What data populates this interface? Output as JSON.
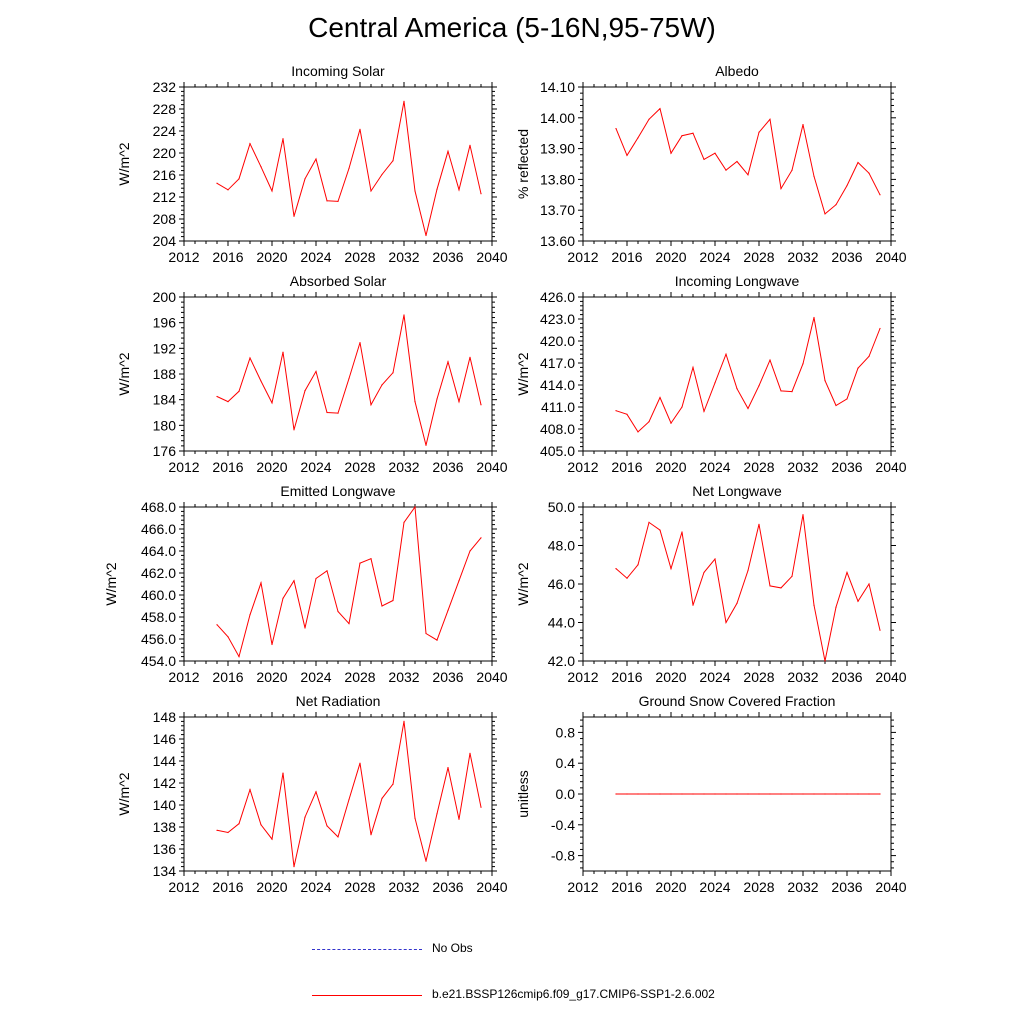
{
  "figure": {
    "title": "Central America (5-16N,95-75W)"
  },
  "legend": {
    "obs_label": "No Obs",
    "model_label": "b.e21.BSSP126cmip6.f09_g17.CMIP6-SSP1-2.6.002",
    "model_color": "#ff0000",
    "obs_color": "#0000ff"
  },
  "chart_data": [
    {
      "type": "line",
      "title": "Incoming Solar",
      "ylabel": "W/m^2",
      "xlim": [
        2012,
        2040
      ],
      "ylim": [
        204,
        232
      ],
      "xticks": [
        2012,
        2016,
        2020,
        2024,
        2028,
        2032,
        2036,
        2040
      ],
      "yticks": [
        "204",
        "208",
        "212",
        "216",
        "220",
        "224",
        "228",
        "232"
      ],
      "x": [
        2015,
        2016,
        2017,
        2018,
        2019,
        2020,
        2021,
        2022,
        2023,
        2024,
        2025,
        2026,
        2027,
        2028,
        2029,
        2030,
        2031,
        2032,
        2033,
        2034,
        2035,
        2036,
        2037,
        2038,
        2039
      ],
      "values": [
        214.5,
        213.3,
        215.3,
        221.7,
        217.5,
        213.1,
        222.6,
        208.5,
        215.3,
        218.9,
        211.3,
        211.2,
        217.2,
        224.3,
        213.1,
        216.1,
        218.6,
        229.4,
        213.1,
        205.0,
        213.4,
        220.3,
        213.3,
        221.4,
        212.6
      ],
      "series_color": "#ff0000"
    },
    {
      "type": "line",
      "title": "Albedo",
      "ylabel": "% reflected",
      "xlim": [
        2012,
        2040
      ],
      "ylim": [
        13.6,
        14.1
      ],
      "xticks": [
        2012,
        2016,
        2020,
        2024,
        2028,
        2032,
        2036,
        2040
      ],
      "yticks": [
        "13.60",
        "13.70",
        "13.80",
        "13.90",
        "14.00",
        "14.10"
      ],
      "x": [
        2015,
        2016,
        2017,
        2018,
        2019,
        2020,
        2021,
        2022,
        2023,
        2024,
        2025,
        2026,
        2027,
        2028,
        2029,
        2030,
        2031,
        2032,
        2033,
        2034,
        2035,
        2036,
        2037,
        2038,
        2039
      ],
      "values": [
        13.965,
        13.878,
        13.935,
        13.995,
        14.03,
        13.885,
        13.942,
        13.95,
        13.865,
        13.885,
        13.83,
        13.858,
        13.815,
        13.953,
        13.995,
        13.77,
        13.83,
        13.978,
        13.81,
        13.688,
        13.718,
        13.78,
        13.855,
        13.82,
        13.75
      ],
      "series_color": "#ff0000"
    },
    {
      "type": "line",
      "title": "Absorbed Solar",
      "ylabel": "W/m^2",
      "xlim": [
        2012,
        2040
      ],
      "ylim": [
        176,
        200
      ],
      "xticks": [
        2012,
        2016,
        2020,
        2024,
        2028,
        2032,
        2036,
        2040
      ],
      "yticks": [
        "176",
        "180",
        "184",
        "188",
        "192",
        "196",
        "200"
      ],
      "x": [
        2015,
        2016,
        2017,
        2018,
        2019,
        2020,
        2021,
        2022,
        2023,
        2024,
        2025,
        2026,
        2027,
        2028,
        2029,
        2030,
        2031,
        2032,
        2033,
        2034,
        2035,
        2036,
        2037,
        2038,
        2039
      ],
      "values": [
        184.5,
        183.7,
        185.3,
        190.5,
        186.9,
        183.5,
        191.4,
        179.3,
        185.4,
        188.4,
        182.0,
        181.9,
        187.3,
        192.9,
        183.2,
        186.3,
        188.2,
        197.2,
        183.7,
        176.9,
        184.1,
        189.9,
        183.7,
        190.6,
        183.2
      ],
      "series_color": "#ff0000"
    },
    {
      "type": "line",
      "title": "Incoming Longwave",
      "ylabel": "W/m^2",
      "xlim": [
        2012,
        2040
      ],
      "ylim": [
        405,
        426
      ],
      "xticks": [
        2012,
        2016,
        2020,
        2024,
        2028,
        2032,
        2036,
        2040
      ],
      "yticks": [
        "405.0",
        "408.0",
        "411.0",
        "414.0",
        "417.0",
        "420.0",
        "423.0",
        "426.0"
      ],
      "x": [
        2015,
        2016,
        2017,
        2018,
        2019,
        2020,
        2021,
        2022,
        2023,
        2024,
        2025,
        2026,
        2027,
        2028,
        2029,
        2030,
        2031,
        2032,
        2033,
        2034,
        2035,
        2036,
        2037,
        2038,
        2039
      ],
      "values": [
        410.5,
        410.0,
        407.6,
        409.0,
        412.3,
        408.8,
        411.0,
        416.4,
        410.4,
        414.3,
        418.2,
        413.5,
        410.8,
        413.9,
        417.4,
        413.2,
        413.1,
        416.9,
        423.2,
        414.6,
        411.2,
        412.1,
        416.3,
        417.9,
        421.7
      ],
      "series_color": "#ff0000"
    },
    {
      "type": "line",
      "title": "Emitted Longwave",
      "ylabel": "W/m^2",
      "xlim": [
        2012,
        2040
      ],
      "ylim": [
        454,
        468
      ],
      "xticks": [
        2012,
        2016,
        2020,
        2024,
        2028,
        2032,
        2036,
        2040
      ],
      "yticks": [
        "454.0",
        "456.0",
        "458.0",
        "460.0",
        "462.0",
        "464.0",
        "466.0",
        "468.0"
      ],
      "x": [
        2015,
        2016,
        2017,
        2018,
        2019,
        2020,
        2021,
        2022,
        2023,
        2024,
        2025,
        2026,
        2027,
        2028,
        2029,
        2030,
        2031,
        2032,
        2033,
        2034,
        2035,
        2036,
        2037,
        2038,
        2039
      ],
      "values": [
        457.3,
        456.2,
        454.4,
        458.2,
        461.1,
        455.5,
        459.7,
        461.3,
        457.0,
        461.5,
        462.2,
        458.5,
        457.4,
        462.9,
        463.3,
        459.0,
        459.5,
        466.6,
        468.0,
        456.5,
        455.9,
        458.6,
        461.3,
        464.0,
        465.2
      ],
      "series_color": "#ff0000"
    },
    {
      "type": "line",
      "title": "Net Longwave",
      "ylabel": "W/m^2",
      "xlim": [
        2012,
        2040
      ],
      "ylim": [
        42,
        50
      ],
      "xticks": [
        2012,
        2016,
        2020,
        2024,
        2028,
        2032,
        2036,
        2040
      ],
      "yticks": [
        "42.0",
        "44.0",
        "46.0",
        "48.0",
        "50.0"
      ],
      "x": [
        2015,
        2016,
        2017,
        2018,
        2019,
        2020,
        2021,
        2022,
        2023,
        2024,
        2025,
        2026,
        2027,
        2028,
        2029,
        2030,
        2031,
        2032,
        2033,
        2034,
        2035,
        2036,
        2037,
        2038,
        2039
      ],
      "values": [
        46.8,
        46.3,
        47.0,
        49.2,
        48.8,
        46.8,
        48.7,
        44.9,
        46.6,
        47.3,
        44.0,
        45.0,
        46.7,
        49.1,
        45.9,
        45.8,
        46.4,
        49.6,
        44.9,
        42.0,
        44.8,
        46.6,
        45.1,
        46.0,
        43.6
      ],
      "series_color": "#ff0000"
    },
    {
      "type": "line",
      "title": "Net Radiation",
      "ylabel": "W/m^2",
      "xlim": [
        2012,
        2040
      ],
      "ylim": [
        134,
        148
      ],
      "xticks": [
        2012,
        2016,
        2020,
        2024,
        2028,
        2032,
        2036,
        2040
      ],
      "yticks": [
        "134",
        "136",
        "138",
        "140",
        "142",
        "144",
        "146",
        "148"
      ],
      "x": [
        2015,
        2016,
        2017,
        2018,
        2019,
        2020,
        2021,
        2022,
        2023,
        2024,
        2025,
        2026,
        2027,
        2028,
        2029,
        2030,
        2031,
        2032,
        2033,
        2034,
        2035,
        2036,
        2037,
        2038,
        2039
      ],
      "values": [
        137.7,
        137.5,
        138.3,
        141.4,
        138.2,
        136.9,
        142.9,
        134.4,
        138.9,
        141.2,
        138.1,
        137.1,
        140.5,
        143.8,
        137.3,
        140.6,
        141.9,
        147.6,
        138.8,
        134.9,
        139.2,
        143.4,
        138.7,
        144.7,
        139.8
      ],
      "series_color": "#ff0000"
    },
    {
      "type": "line",
      "title": "Ground Snow Covered Fraction",
      "ylabel": "unitless",
      "xlim": [
        2012,
        2040
      ],
      "ylim": [
        -1.0,
        1.0
      ],
      "xticks": [
        2012,
        2016,
        2020,
        2024,
        2028,
        2032,
        2036,
        2040
      ],
      "yticks": [
        "-0.8",
        "-0.4",
        "0.0",
        "0.4",
        "0.8"
      ],
      "x": [
        2015,
        2016,
        2017,
        2018,
        2019,
        2020,
        2021,
        2022,
        2023,
        2024,
        2025,
        2026,
        2027,
        2028,
        2029,
        2030,
        2031,
        2032,
        2033,
        2034,
        2035,
        2036,
        2037,
        2038,
        2039
      ],
      "values": [
        0,
        0,
        0,
        0,
        0,
        0,
        0,
        0,
        0,
        0,
        0,
        0,
        0,
        0,
        0,
        0,
        0,
        0,
        0,
        0,
        0,
        0,
        0,
        0,
        0
      ],
      "series_color": "#ff0000"
    }
  ]
}
